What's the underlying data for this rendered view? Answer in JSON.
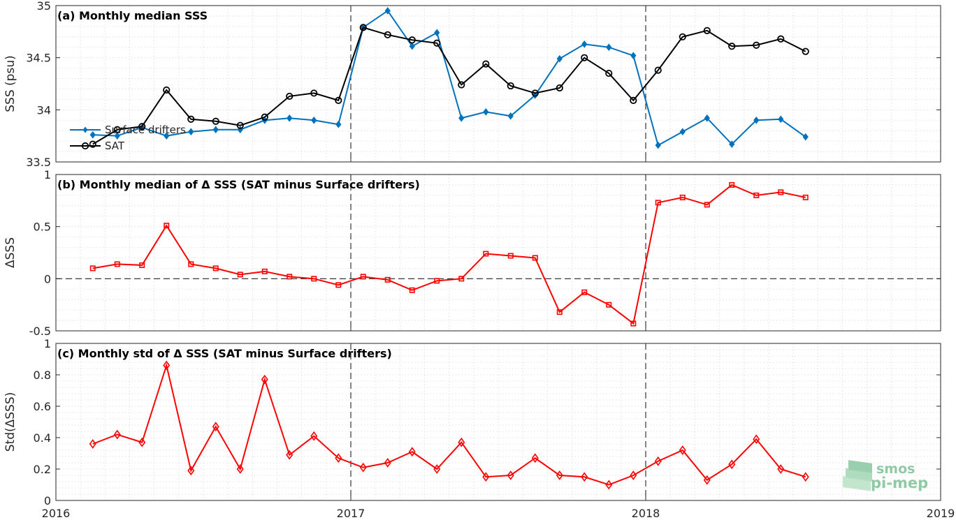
{
  "chart_data": [
    {
      "id": "a",
      "type": "line",
      "title": "(a) Monthly median SSS",
      "ylabel": "SSS (psu)",
      "ylim": [
        33.5,
        35
      ],
      "yticks": [
        33.5,
        34,
        34.5,
        35
      ],
      "ytick_labels": [
        "33.5",
        "34",
        "34.5",
        "35"
      ],
      "xlim": [
        2016,
        2019
      ],
      "grid": true,
      "legend": "lower-left",
      "x": [
        2016.125,
        2016.208,
        2016.292,
        2016.375,
        2016.458,
        2016.542,
        2016.625,
        2016.708,
        2016.792,
        2016.875,
        2016.958,
        2017.042,
        2017.125,
        2017.208,
        2017.292,
        2017.375,
        2017.458,
        2017.542,
        2017.625,
        2017.708,
        2017.792,
        2017.875,
        2017.958,
        2018.042,
        2018.125,
        2018.208,
        2018.292,
        2018.375,
        2018.458,
        2018.542
      ],
      "series": [
        {
          "name": "Surface drifters",
          "color": "#0072bd",
          "marker": "diamond-filled",
          "values": [
            33.76,
            33.75,
            33.83,
            33.75,
            33.79,
            33.81,
            33.81,
            33.9,
            33.92,
            33.9,
            33.86,
            34.79,
            34.95,
            34.61,
            34.74,
            33.92,
            33.98,
            33.94,
            34.14,
            34.49,
            34.63,
            34.6,
            34.52,
            33.66,
            33.79,
            33.92,
            33.67,
            33.9,
            33.91,
            33.74
          ]
        },
        {
          "name": "SAT",
          "color": "#000000",
          "marker": "circle",
          "values": [
            33.67,
            33.81,
            33.84,
            34.19,
            33.91,
            33.89,
            33.85,
            33.93,
            34.13,
            34.16,
            34.09,
            34.79,
            34.72,
            34.67,
            34.64,
            34.24,
            34.44,
            34.23,
            34.16,
            34.21,
            34.5,
            34.35,
            34.09,
            34.38,
            34.7,
            34.76,
            34.61,
            34.62,
            34.68,
            34.56
          ]
        }
      ]
    },
    {
      "id": "b",
      "type": "line",
      "title": "(b) Monthly median of Δ SSS (SAT minus Surface drifters)",
      "ylabel": "ΔSSS",
      "ylim": [
        -0.5,
        1
      ],
      "yticks": [
        -0.5,
        0,
        0.5,
        1
      ],
      "ytick_labels": [
        "-0.5",
        "0",
        "0.5",
        "1"
      ],
      "xlim": [
        2016,
        2019
      ],
      "grid": true,
      "zero_line": true,
      "x": [
        2016.125,
        2016.208,
        2016.292,
        2016.375,
        2016.458,
        2016.542,
        2016.625,
        2016.708,
        2016.792,
        2016.875,
        2016.958,
        2017.042,
        2017.125,
        2017.208,
        2017.292,
        2017.375,
        2017.458,
        2017.542,
        2017.625,
        2017.708,
        2017.792,
        2017.875,
        2017.958,
        2018.042,
        2018.125,
        2018.208,
        2018.292,
        2018.375,
        2018.458,
        2018.542
      ],
      "series": [
        {
          "color": "#ff0000",
          "marker": "square",
          "values": [
            0.1,
            0.14,
            0.13,
            0.51,
            0.14,
            0.1,
            0.04,
            0.07,
            0.02,
            0.0,
            -0.06,
            0.02,
            -0.01,
            -0.11,
            -0.02,
            0.0,
            0.24,
            0.22,
            0.2,
            -0.32,
            -0.13,
            -0.25,
            -0.43,
            0.73,
            0.78,
            0.71,
            0.9,
            0.8,
            0.83,
            0.78
          ]
        }
      ]
    },
    {
      "id": "c",
      "type": "line",
      "title": "(c) Monthly std of Δ SSS (SAT minus Surface drifters)",
      "ylabel": "Std(ΔSSS)",
      "ylim": [
        0,
        1
      ],
      "yticks": [
        0,
        0.2,
        0.4,
        0.6,
        0.8,
        1
      ],
      "ytick_labels": [
        "0",
        "0.2",
        "0.4",
        "0.6",
        "0.8",
        "1"
      ],
      "xlim": [
        2016,
        2019
      ],
      "xticks": [
        2016,
        2017,
        2018,
        2019
      ],
      "xtick_labels": [
        "2016",
        "2017",
        "2018",
        "2019"
      ],
      "grid": true,
      "x": [
        2016.125,
        2016.208,
        2016.292,
        2016.375,
        2016.458,
        2016.542,
        2016.625,
        2016.708,
        2016.792,
        2016.875,
        2016.958,
        2017.042,
        2017.125,
        2017.208,
        2017.292,
        2017.375,
        2017.458,
        2017.542,
        2017.625,
        2017.708,
        2017.792,
        2017.875,
        2017.958,
        2018.042,
        2018.125,
        2018.208,
        2018.292,
        2018.375,
        2018.458,
        2018.542
      ],
      "series": [
        {
          "color": "#ff0000",
          "marker": "diamond",
          "values": [
            0.36,
            0.42,
            0.37,
            0.86,
            0.19,
            0.47,
            0.2,
            0.77,
            0.29,
            0.41,
            0.27,
            0.21,
            0.24,
            0.31,
            0.2,
            0.37,
            0.15,
            0.16,
            0.27,
            0.16,
            0.15,
            0.1,
            0.16,
            0.25,
            0.32,
            0.13,
            0.23,
            0.39,
            0.2,
            0.15
          ]
        }
      ]
    }
  ],
  "year_separators": [
    2017,
    2018
  ],
  "logo": {
    "line1": "smos",
    "line2": "pi-mep",
    "color": "#8fc9a5"
  }
}
